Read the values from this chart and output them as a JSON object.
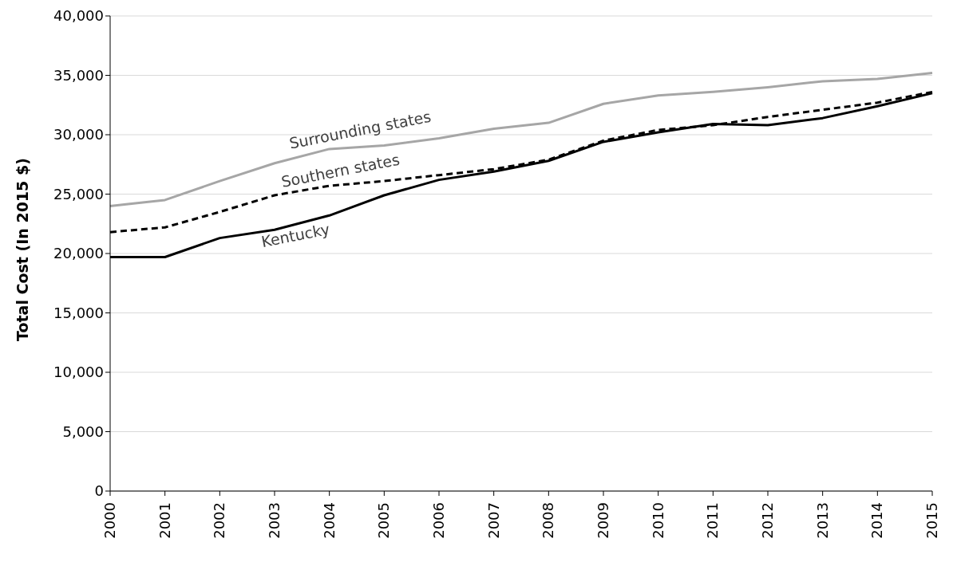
{
  "chart_data": {
    "type": "line",
    "ylabel": "Total Cost  (In 2015 $)",
    "categories": [
      "2000",
      "2001",
      "2002",
      "2003",
      "2004",
      "2005",
      "2006",
      "2007",
      "2008",
      "2009",
      "2010",
      "2011",
      "2012",
      "2013",
      "2014",
      "2015"
    ],
    "series": [
      {
        "name": "Surrounding states",
        "color": "#a6a6a6",
        "line_style": "solid",
        "values": [
          24000,
          24500,
          26100,
          27600,
          28800,
          29100,
          29700,
          30500,
          31000,
          32600,
          33300,
          33600,
          34000,
          34500,
          34700,
          35200
        ]
      },
      {
        "name": "Southern states",
        "color": "#000000",
        "line_style": "dashed",
        "values": [
          21800,
          22200,
          23500,
          24900,
          25700,
          26100,
          26600,
          27100,
          27900,
          29500,
          30400,
          30800,
          31500,
          32100,
          32700,
          33600
        ]
      },
      {
        "name": "Kentucky",
        "color": "#000000",
        "line_style": "solid",
        "values": [
          19700,
          19700,
          21300,
          22000,
          23200,
          24900,
          26200,
          26900,
          27800,
          29400,
          30200,
          30900,
          30800,
          31400,
          32400,
          33500
        ]
      }
    ],
    "ylim": [
      0,
      40000
    ],
    "yticks": [
      {
        "value": 0,
        "label": "0"
      },
      {
        "value": 5000,
        "label": "5,000"
      },
      {
        "value": 10000,
        "label": "10,000"
      },
      {
        "value": 15000,
        "label": "15,000"
      },
      {
        "value": 20000,
        "label": "20,000"
      },
      {
        "value": 25000,
        "label": "25,000"
      },
      {
        "value": 30000,
        "label": "30,000"
      },
      {
        "value": 35000,
        "label": "35,000"
      },
      {
        "value": 40000,
        "label": "40,000"
      }
    ],
    "grid": "y",
    "legend": false,
    "marker": "none"
  }
}
